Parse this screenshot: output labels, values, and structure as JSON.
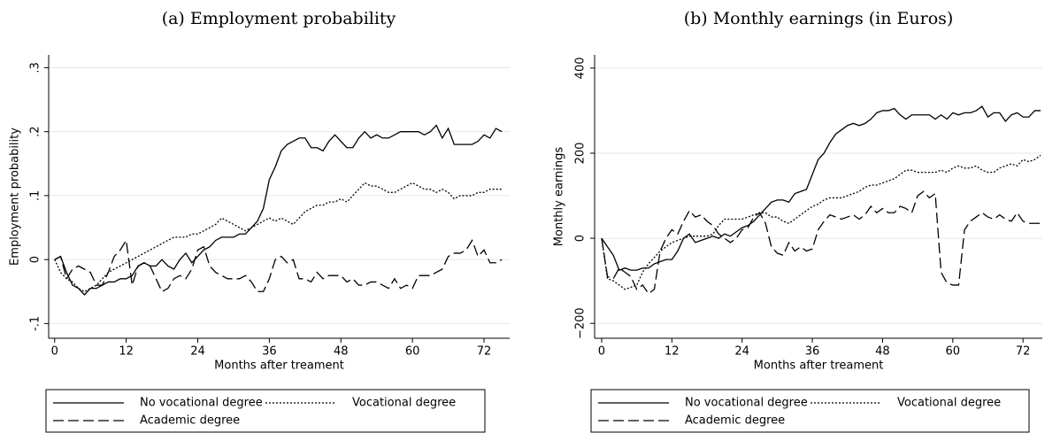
{
  "chart_data": [
    {
      "type": "line",
      "title": "(a) Employment probability",
      "x_label": "Months after treament",
      "y_label": "Employment probability",
      "x": [
        0,
        1,
        2,
        3,
        4,
        5,
        6,
        7,
        8,
        9,
        10,
        11,
        12,
        13,
        14,
        15,
        16,
        17,
        18,
        19,
        20,
        21,
        22,
        23,
        24,
        25,
        26,
        27,
        28,
        29,
        30,
        31,
        32,
        33,
        34,
        35,
        36,
        37,
        38,
        39,
        40,
        41,
        42,
        43,
        44,
        45,
        46,
        47,
        48,
        49,
        50,
        51,
        52,
        53,
        54,
        55,
        56,
        57,
        58,
        59,
        60,
        61,
        62,
        63,
        64,
        65,
        66,
        67,
        68,
        69,
        70,
        71,
        72,
        73,
        74,
        75
      ],
      "xlim": [
        -1,
        76.3
      ],
      "xticks": [
        0,
        12,
        24,
        36,
        48,
        60,
        72
      ],
      "ylim": [
        -0.123,
        0.32
      ],
      "yticks": [
        {
          "value": -0.1,
          "label": "-.1"
        },
        0,
        {
          "value": 0.1,
          "label": ".1"
        },
        {
          "value": 0.2,
          "label": ".2"
        },
        {
          "value": 0.3,
          "label": ".3"
        }
      ],
      "grid": true,
      "series": [
        {
          "name": "No vocational degree",
          "color": "#000000",
          "line_style": "solid",
          "values": [
            0,
            0.005,
            -0.02,
            -0.04,
            -0.045,
            -0.055,
            -0.045,
            -0.045,
            -0.04,
            -0.035,
            -0.035,
            -0.03,
            -0.03,
            -0.025,
            -0.01,
            -0.005,
            -0.01,
            -0.01,
            0,
            -0.01,
            -0.015,
            0,
            0.01,
            -0.005,
            0.005,
            0.015,
            0.02,
            0.03,
            0.035,
            0.035,
            0.035,
            0.04,
            0.04,
            0.05,
            0.06,
            0.08,
            0.125,
            0.145,
            0.17,
            0.18,
            0.185,
            0.19,
            0.19,
            0.175,
            0.175,
            0.17,
            0.185,
            0.195,
            0.185,
            0.175,
            0.175,
            0.19,
            0.2,
            0.19,
            0.195,
            0.19,
            0.19,
            0.195,
            0.2,
            0.2,
            0.2,
            0.2,
            0.195,
            0.2,
            0.21,
            0.19,
            0.205,
            0.18,
            0.18,
            0.18,
            0.18,
            0.185,
            0.195,
            0.19,
            0.205,
            0.2
          ]
        },
        {
          "name": "Vocational degree",
          "color": "#000000",
          "line_style": "dotted",
          "values": [
            0,
            -0.02,
            -0.03,
            -0.035,
            -0.045,
            -0.05,
            -0.045,
            -0.04,
            -0.03,
            -0.02,
            -0.015,
            -0.01,
            -0.005,
            0,
            0.005,
            0.01,
            0.015,
            0.02,
            0.025,
            0.03,
            0.035,
            0.035,
            0.035,
            0.04,
            0.04,
            0.045,
            0.05,
            0.055,
            0.065,
            0.06,
            0.055,
            0.05,
            0.045,
            0.05,
            0.055,
            0.06,
            0.065,
            0.06,
            0.065,
            0.06,
            0.055,
            0.065,
            0.075,
            0.08,
            0.085,
            0.085,
            0.09,
            0.09,
            0.095,
            0.09,
            0.1,
            0.11,
            0.12,
            0.115,
            0.115,
            0.11,
            0.105,
            0.105,
            0.11,
            0.115,
            0.12,
            0.115,
            0.11,
            0.11,
            0.105,
            0.11,
            0.105,
            0.095,
            0.1,
            0.1,
            0.1,
            0.105,
            0.105,
            0.11,
            0.11,
            0.11
          ]
        },
        {
          "name": "Academic degree",
          "color": "#000000",
          "line_style": "dashed",
          "values": [
            0,
            0.005,
            -0.03,
            -0.015,
            -0.01,
            -0.015,
            -0.02,
            -0.04,
            -0.04,
            -0.02,
            0.005,
            0.015,
            0.03,
            -0.04,
            -0.01,
            -0.005,
            -0.01,
            -0.03,
            -0.05,
            -0.045,
            -0.03,
            -0.025,
            -0.03,
            -0.015,
            0.015,
            0.02,
            -0.01,
            -0.02,
            -0.025,
            -0.03,
            -0.03,
            -0.03,
            -0.025,
            -0.035,
            -0.05,
            -0.05,
            -0.03,
            0,
            0.005,
            -0.005,
            0,
            -0.03,
            -0.03,
            -0.035,
            -0.02,
            -0.03,
            -0.025,
            -0.025,
            -0.025,
            -0.035,
            -0.03,
            -0.04,
            -0.04,
            -0.035,
            -0.035,
            -0.04,
            -0.045,
            -0.03,
            -0.045,
            -0.04,
            -0.045,
            -0.025,
            -0.025,
            -0.025,
            -0.02,
            -0.015,
            0.005,
            0.01,
            0.01,
            0.015,
            0.03,
            0.005,
            0.015,
            -0.005,
            -0.005,
            0
          ]
        }
      ]
    },
    {
      "type": "line",
      "title": "(b) Monthly earnings (in Euros)",
      "x_label": "Months after treament",
      "y_label": "Monthly earnings",
      "x": [
        0,
        1,
        2,
        3,
        4,
        5,
        6,
        7,
        8,
        9,
        10,
        11,
        12,
        13,
        14,
        15,
        16,
        17,
        18,
        19,
        20,
        21,
        22,
        23,
        24,
        25,
        26,
        27,
        28,
        29,
        30,
        31,
        32,
        33,
        34,
        35,
        36,
        37,
        38,
        39,
        40,
        41,
        42,
        43,
        44,
        45,
        46,
        47,
        48,
        49,
        50,
        51,
        52,
        53,
        54,
        55,
        56,
        57,
        58,
        59,
        60,
        61,
        62,
        63,
        64,
        65,
        66,
        67,
        68,
        69,
        70,
        71,
        72,
        73,
        74,
        75
      ],
      "xlim": [
        -1.2,
        75.3
      ],
      "xticks": [
        0,
        12,
        24,
        36,
        48,
        60,
        72
      ],
      "ylim": [
        -235,
        431
      ],
      "yticks": [
        {
          "value": -200,
          "label": "−200"
        },
        0,
        200,
        400
      ],
      "grid": true,
      "series": [
        {
          "name": "No vocational degree",
          "color": "#000000",
          "line_style": "solid",
          "values": [
            0,
            -20,
            -40,
            -75,
            -70,
            -75,
            -75,
            -70,
            -70,
            -60,
            -55,
            -50,
            -50,
            -30,
            0,
            10,
            -10,
            -5,
            0,
            5,
            0,
            10,
            5,
            15,
            25,
            30,
            40,
            55,
            70,
            85,
            90,
            90,
            85,
            105,
            110,
            115,
            150,
            185,
            200,
            225,
            245,
            255,
            265,
            270,
            265,
            270,
            280,
            295,
            300,
            300,
            305,
            290,
            280,
            290,
            290,
            290,
            290,
            280,
            290,
            280,
            295,
            290,
            295,
            295,
            300,
            310,
            285,
            295,
            295,
            275,
            290,
            295,
            285,
            285,
            300,
            300
          ]
        },
        {
          "name": "Vocational degree",
          "color": "#000000",
          "line_style": "dotted",
          "values": [
            0,
            -95,
            -100,
            -110,
            -120,
            -115,
            -110,
            -80,
            -60,
            -45,
            -30,
            -20,
            -10,
            -5,
            0,
            5,
            5,
            5,
            5,
            10,
            30,
            45,
            45,
            45,
            45,
            50,
            55,
            60,
            60,
            50,
            50,
            40,
            35,
            45,
            55,
            65,
            75,
            80,
            90,
            95,
            95,
            95,
            100,
            105,
            110,
            120,
            125,
            125,
            130,
            135,
            140,
            150,
            160,
            160,
            155,
            155,
            155,
            155,
            160,
            155,
            165,
            170,
            165,
            165,
            170,
            160,
            155,
            155,
            165,
            170,
            175,
            170,
            185,
            180,
            185,
            195
          ]
        },
        {
          "name": "Academic degree",
          "color": "#000000",
          "line_style": "dashed",
          "values": [
            0,
            -90,
            -95,
            -70,
            -80,
            -90,
            -120,
            -110,
            -130,
            -120,
            -30,
            0,
            20,
            10,
            40,
            65,
            50,
            55,
            40,
            30,
            10,
            0,
            -10,
            0,
            20,
            25,
            50,
            60,
            35,
            -20,
            -35,
            -40,
            -10,
            -30,
            -20,
            -30,
            -25,
            20,
            40,
            55,
            50,
            45,
            50,
            55,
            45,
            55,
            75,
            60,
            70,
            60,
            60,
            75,
            70,
            60,
            100,
            110,
            95,
            105,
            -80,
            -105,
            -110,
            -110,
            20,
            40,
            50,
            60,
            50,
            45,
            55,
            45,
            40,
            60,
            40,
            35,
            35,
            35
          ]
        }
      ]
    }
  ]
}
